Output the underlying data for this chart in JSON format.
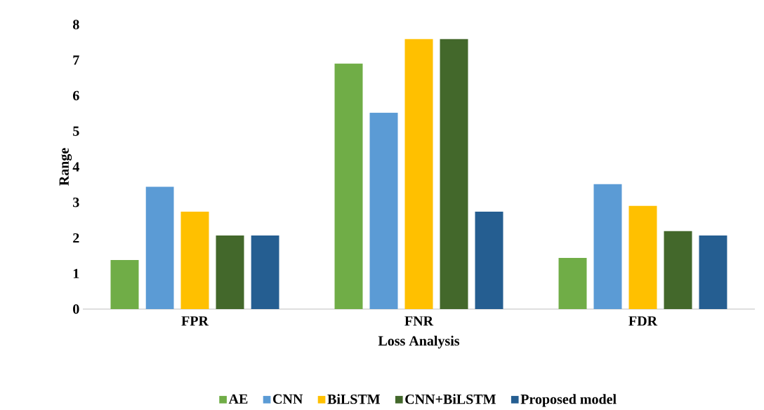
{
  "chart_data": {
    "type": "bar",
    "xlabel": "Loss Analysis",
    "ylabel": "Range",
    "categories": [
      "FPR",
      "FNR",
      "FDR"
    ],
    "series": [
      {
        "name": "AE",
        "color": "#70ad47",
        "values": [
          1.38,
          6.9,
          1.44
        ]
      },
      {
        "name": "CNN",
        "color": "#5b9bd5",
        "values": [
          3.44,
          5.52,
          3.51
        ]
      },
      {
        "name": "BiLSTM",
        "color": "#ffc000",
        "values": [
          2.74,
          7.59,
          2.9
        ]
      },
      {
        "name": "CNN+BiLSTM",
        "color": "#43682b",
        "values": [
          2.07,
          7.59,
          2.19
        ]
      },
      {
        "name": "Proposed model",
        "color": "#255e91",
        "values": [
          2.07,
          2.74,
          2.07
        ]
      }
    ],
    "ylim": [
      0,
      8
    ],
    "yticks": [
      0,
      1,
      2,
      3,
      4,
      5,
      6,
      7,
      8
    ],
    "grid": false,
    "legend": "bottom"
  }
}
